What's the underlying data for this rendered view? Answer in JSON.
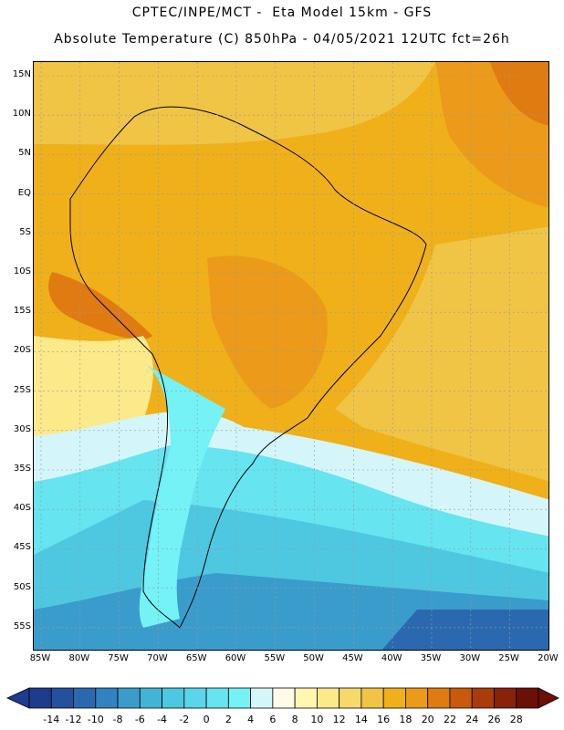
{
  "header": {
    "line1": "CPTEC/INPE/MCT -  Eta Model 15km - GFS",
    "line2": "Absolute Temperature (C) 850hPa - 04/05/2021 12UTC fct=26h"
  },
  "map": {
    "variable": "Absolute Temperature (C)",
    "level": "850hPa",
    "lat_ticks": [
      "15N",
      "10N",
      "5N",
      "EQ",
      "5S",
      "10S",
      "15S",
      "20S",
      "25S",
      "30S",
      "35S",
      "40S",
      "45S",
      "50S",
      "55S"
    ],
    "lon_ticks": [
      "85W",
      "80W",
      "75W",
      "70W",
      "65W",
      "60W",
      "55W",
      "50W",
      "45W",
      "40W",
      "35W",
      "30W",
      "25W",
      "20W"
    ],
    "regions": [
      {
        "name": "tropical-interior",
        "temp_class": "16-18"
      },
      {
        "name": "central-brazil-warm-core",
        "temp_class": "18-20"
      },
      {
        "name": "east-atlantic-warm",
        "temp_class": "22-24"
      },
      {
        "name": "south-atlantic-cold",
        "temp_class": "-2-0"
      },
      {
        "name": "patagonia",
        "temp_class": "2-4"
      }
    ]
  },
  "colorbar": {
    "levels": [
      "-14",
      "-12",
      "-10",
      "-8",
      "-6",
      "-4",
      "-2",
      "0",
      "2",
      "4",
      "6",
      "8",
      "10",
      "12",
      "14",
      "16",
      "18",
      "20",
      "22",
      "24",
      "26",
      "28"
    ],
    "colors": [
      "#1e3c8c",
      "#23519e",
      "#2a69b0",
      "#3282bf",
      "#3a9ccb",
      "#43b4d6",
      "#4ec8e0",
      "#5ad6e8",
      "#66e4f0",
      "#74f2f6",
      "#d4f6fa",
      "#fffbe6",
      "#fff6b0",
      "#fbe98a",
      "#f6d96a",
      "#f0c445",
      "#efb01a",
      "#eb9a1a",
      "#e07b12",
      "#c85a0c",
      "#a83c0a",
      "#882208",
      "#6a1005"
    ]
  }
}
